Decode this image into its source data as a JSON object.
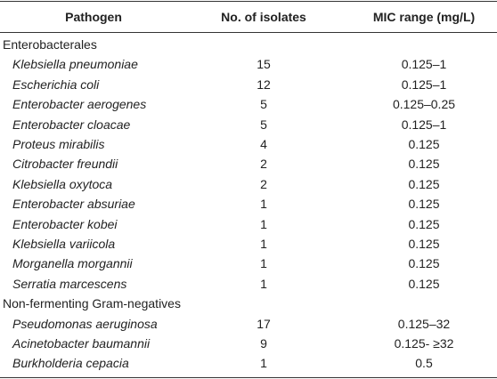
{
  "table": {
    "header": [
      "Pathogen",
      "No. of isolates",
      "MIC range (mg/L)"
    ],
    "groups": [
      {
        "name": "Enterobacterales",
        "rows": [
          [
            "Klebsiella pneumoniae",
            15,
            "0.125–1"
          ],
          [
            "Escherichia coli",
            12,
            "0.125–1"
          ],
          [
            "Enterobacter aerogenes",
            5,
            "0.125–0.25"
          ],
          [
            "Enterobacter cloacae",
            5,
            "0.125–1"
          ],
          [
            "Proteus mirabilis",
            4,
            "0.125"
          ],
          [
            "Citrobacter freundii",
            2,
            "0.125"
          ],
          [
            "Klebsiella oxytoca",
            2,
            "0.125"
          ],
          [
            "Enterobacter absuriae",
            1,
            "0.125"
          ],
          [
            "Enterobacter kobei",
            1,
            "0.125"
          ],
          [
            "Klebsiella variicola",
            1,
            "0.125"
          ],
          [
            "Morganella morgannii",
            1,
            "0.125"
          ],
          [
            "Serratia marcescens",
            1,
            "0.125"
          ]
        ]
      },
      {
        "name": "Non-fermenting Gram-negatives",
        "rows": [
          [
            "Pseudomonas aeruginosa",
            17,
            "0.125–32"
          ],
          [
            "Acinetobacter baumannii",
            9,
            "0.125- ≥32"
          ],
          [
            "Burkholderia cepacia",
            1,
            "0.5"
          ]
        ]
      }
    ]
  }
}
